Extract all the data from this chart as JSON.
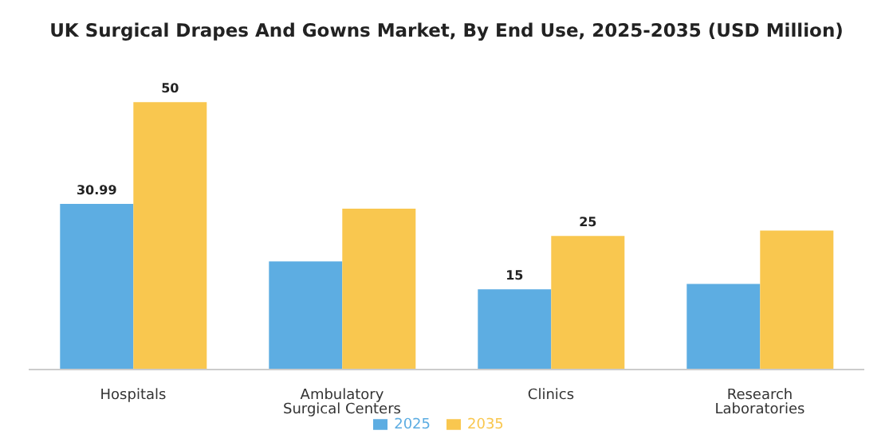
{
  "chart_data": {
    "type": "bar",
    "title": "UK Surgical Drapes And Gowns Market, By End Use, 2025-2035 (USD Million)",
    "categories": [
      "Hospitals",
      "Ambulatory Surgical Centers",
      "Clinics",
      "Research Laboratories"
    ],
    "series": [
      {
        "name": "2025",
        "color": "#5dade2",
        "values": [
          30.99,
          20.2,
          15,
          16
        ],
        "value_labels": [
          "30.99",
          null,
          "15",
          null
        ]
      },
      {
        "name": "2035",
        "color": "#f9c74f",
        "values": [
          50,
          30.1,
          25,
          26
        ],
        "value_labels": [
          "50",
          null,
          "25",
          null
        ]
      }
    ],
    "legend": "bottom",
    "grid": false
  }
}
